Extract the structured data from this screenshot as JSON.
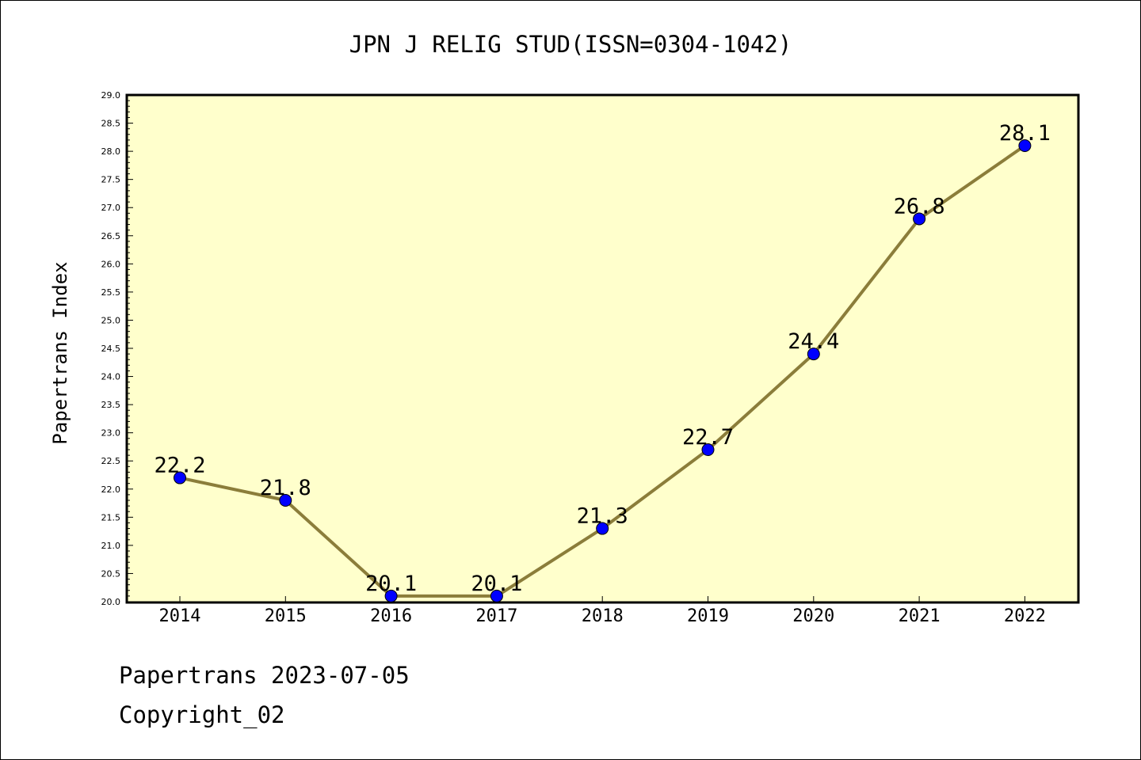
{
  "chart_data": {
    "type": "line",
    "title": "JPN J RELIG STUD(ISSN=0304-1042)",
    "ylabel": "Papertrans Index",
    "xlabel": "",
    "categories": [
      "2014",
      "2015",
      "2016",
      "2017",
      "2018",
      "2019",
      "2020",
      "2021",
      "2022"
    ],
    "series": [
      {
        "values": [
          22.2,
          21.8,
          20.1,
          20.1,
          21.3,
          22.7,
          24.4,
          26.8,
          28.1
        ],
        "labels": [
          "22.2",
          "21.8",
          "20.1",
          "20.1",
          "21.3",
          "22.7",
          "24.4",
          "26.8",
          "28.1"
        ]
      }
    ],
    "ylim": [
      20.0,
      29.0
    ],
    "yticks": [
      "20.0",
      "20.5",
      "21.0",
      "21.5",
      "22.0",
      "22.5",
      "23.0",
      "23.5",
      "24.0",
      "24.5",
      "25.0",
      "25.5",
      "26.0",
      "26.5",
      "27.0",
      "27.5",
      "28.0",
      "28.5",
      "29.0"
    ],
    "grid": false,
    "colors": {
      "plot_background": "#ffffcc",
      "line": "#8b7d3a",
      "marker": "#0000ff"
    }
  },
  "footer": {
    "date_line": "Papertrans 2023-07-05",
    "copyright_line": "Copyright_02"
  }
}
